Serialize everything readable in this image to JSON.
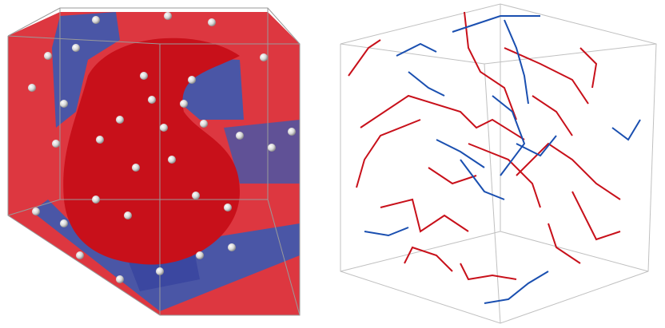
{
  "figure": {
    "panels": [
      {
        "id": "left",
        "kind": "3d-volume-render",
        "colors": {
          "phase_a": "#d4101a",
          "phase_b": "#3f4fa8",
          "particles": "#e6e6e6",
          "box_edges": "#9a9a9a"
        }
      },
      {
        "id": "right",
        "kind": "3d-network-skeleton",
        "colors": {
          "network_a": "#c8101a",
          "network_b": "#1a4fb0",
          "box_edges": "#b0b0b0"
        }
      }
    ]
  }
}
